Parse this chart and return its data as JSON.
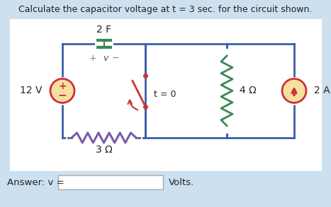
{
  "title": "Calculate the capacitor voltage at t = 3 sec. for the circuit shown.",
  "bg_color": "#cde0f0",
  "circuit_bg": "#ffffff",
  "answer_label": "Answer: v =",
  "volts_label": "Volts.",
  "wire_color": "#3a5fa8",
  "resistor3_color": "#7b5ea7",
  "resistor4_color": "#3a8a50",
  "capacitor_color": "#3a8a50",
  "source_color": "#cc3333",
  "switch_color": "#cc3333",
  "label_2F": "2 F",
  "label_v": "v",
  "label_plus": "+",
  "label_minus": "−",
  "label_t0": "t = 0",
  "label_4ohm": "4 Ω",
  "label_3ohm": "3 Ω",
  "label_12V": "12 V",
  "label_2A": "2 A",
  "figsize": [
    4.67,
    2.93
  ],
  "dpi": 100
}
